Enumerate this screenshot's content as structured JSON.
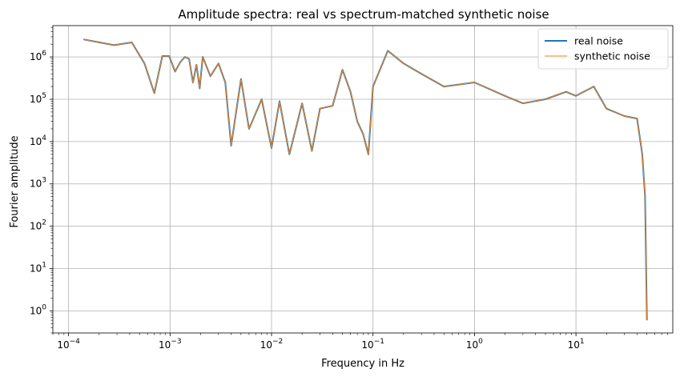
{
  "chart_data": {
    "type": "line",
    "title": "Amplitude spectra: real vs spectrum-matched synthetic noise",
    "xlabel": "Frequency in Hz",
    "ylabel": "Fourier amplitude",
    "xscale": "log",
    "yscale": "log",
    "xlim": [
      7e-05,
      90
    ],
    "ylim": [
      0.3,
      5500000
    ],
    "grid": true,
    "legend_position": "upper right",
    "x_ticks": [
      {
        "value": 0.0001,
        "base": "10",
        "exp": "−4"
      },
      {
        "value": 0.001,
        "base": "10",
        "exp": "−3"
      },
      {
        "value": 0.01,
        "base": "10",
        "exp": "−2"
      },
      {
        "value": 0.1,
        "base": "10",
        "exp": "−1"
      },
      {
        "value": 1,
        "base": "10",
        "exp": "0"
      },
      {
        "value": 10,
        "base": "10",
        "exp": "1"
      }
    ],
    "y_ticks": [
      {
        "value": 1,
        "base": "10",
        "exp": "0"
      },
      {
        "value": 10,
        "base": "10",
        "exp": "1"
      },
      {
        "value": 100,
        "base": "10",
        "exp": "2"
      },
      {
        "value": 1000,
        "base": "10",
        "exp": "3"
      },
      {
        "value": 10000,
        "base": "10",
        "exp": "4"
      },
      {
        "value": 100000,
        "base": "10",
        "exp": "5"
      },
      {
        "value": 1000000,
        "base": "10",
        "exp": "6"
      }
    ],
    "series": [
      {
        "name": "real noise",
        "color": "#1f77b4",
        "points": [
          [
            0.00014,
            2600000
          ],
          [
            0.00028,
            1900000
          ],
          [
            0.00042,
            2200000
          ],
          [
            0.00056,
            700000
          ],
          [
            0.0007,
            140000
          ],
          [
            0.00084,
            1050000
          ],
          [
            0.00098,
            1050000
          ],
          [
            0.00112,
            450000
          ],
          [
            0.00126,
            750000
          ],
          [
            0.0014,
            1000000
          ],
          [
            0.00154,
            900000
          ],
          [
            0.00168,
            250000
          ],
          [
            0.00182,
            650000
          ],
          [
            0.00196,
            180000
          ],
          [
            0.0021,
            1000000
          ],
          [
            0.0025,
            350000
          ],
          [
            0.003,
            700000
          ],
          [
            0.0035,
            250000
          ],
          [
            0.004,
            8000
          ],
          [
            0.005,
            300000
          ],
          [
            0.006,
            20000
          ],
          [
            0.008,
            100000
          ],
          [
            0.01,
            7000
          ],
          [
            0.012,
            90000
          ],
          [
            0.015,
            5000
          ],
          [
            0.02,
            80000
          ],
          [
            0.025,
            6000
          ],
          [
            0.03,
            60000
          ],
          [
            0.04,
            70000
          ],
          [
            0.05,
            500000
          ],
          [
            0.06,
            150000
          ],
          [
            0.07,
            30000
          ],
          [
            0.08,
            15000
          ],
          [
            0.09,
            5000
          ],
          [
            0.1,
            200000
          ],
          [
            0.14,
            1400000
          ],
          [
            0.2,
            700000
          ],
          [
            0.3,
            400000
          ],
          [
            0.5,
            200000
          ],
          [
            1,
            250000
          ],
          [
            2,
            120000
          ],
          [
            3,
            80000
          ],
          [
            5,
            100000
          ],
          [
            8,
            150000
          ],
          [
            10,
            120000
          ],
          [
            15,
            200000
          ],
          [
            20,
            60000
          ],
          [
            30,
            40000
          ],
          [
            40,
            35000
          ],
          [
            45,
            5000
          ],
          [
            48,
            500
          ],
          [
            50,
            0.6
          ]
        ]
      },
      {
        "name": "synthetic noise",
        "color": "#ff7f0e",
        "points": [
          [
            0.00014,
            2600000
          ],
          [
            0.00028,
            1900000
          ],
          [
            0.00042,
            2200000
          ],
          [
            0.00056,
            700000
          ],
          [
            0.0007,
            140000
          ],
          [
            0.00084,
            1050000
          ],
          [
            0.00098,
            1050000
          ],
          [
            0.00112,
            450000
          ],
          [
            0.00126,
            750000
          ],
          [
            0.0014,
            1000000
          ],
          [
            0.00154,
            900000
          ],
          [
            0.00168,
            250000
          ],
          [
            0.00182,
            650000
          ],
          [
            0.00196,
            180000
          ],
          [
            0.0021,
            1000000
          ],
          [
            0.0025,
            350000
          ],
          [
            0.003,
            700000
          ],
          [
            0.0035,
            250000
          ],
          [
            0.004,
            8000
          ],
          [
            0.005,
            300000
          ],
          [
            0.006,
            20000
          ],
          [
            0.008,
            100000
          ],
          [
            0.01,
            7000
          ],
          [
            0.012,
            90000
          ],
          [
            0.015,
            5000
          ],
          [
            0.02,
            80000
          ],
          [
            0.025,
            6000
          ],
          [
            0.03,
            60000
          ],
          [
            0.04,
            70000
          ],
          [
            0.05,
            500000
          ],
          [
            0.06,
            150000
          ],
          [
            0.07,
            30000
          ],
          [
            0.08,
            15000
          ],
          [
            0.09,
            5000
          ],
          [
            0.1,
            200000
          ],
          [
            0.14,
            1400000
          ],
          [
            0.2,
            700000
          ],
          [
            0.3,
            400000
          ],
          [
            0.5,
            200000
          ],
          [
            1,
            250000
          ],
          [
            2,
            120000
          ],
          [
            3,
            80000
          ],
          [
            5,
            100000
          ],
          [
            8,
            150000
          ],
          [
            10,
            120000
          ],
          [
            15,
            200000
          ],
          [
            20,
            60000
          ],
          [
            30,
            40000
          ],
          [
            40,
            35000
          ],
          [
            45,
            5000
          ],
          [
            48,
            500
          ],
          [
            50,
            0.6
          ]
        ]
      }
    ]
  }
}
